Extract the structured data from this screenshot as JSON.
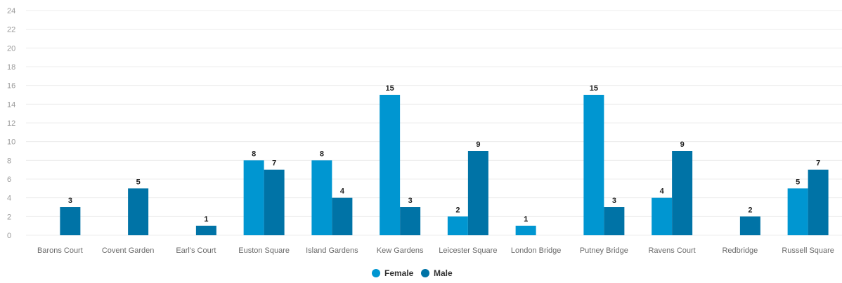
{
  "chart_data": {
    "type": "bar",
    "categories": [
      "Barons Court",
      "Covent Garden",
      "Earl's Court",
      "Euston Square",
      "Island Gardens",
      "Kew Gardens",
      "Leicester Square",
      "London Bridge",
      "Putney Bridge",
      "Ravens Court",
      "Redbridge",
      "Russell Square"
    ],
    "series": [
      {
        "name": "Female",
        "color": "#0096d1",
        "values": [
          null,
          null,
          null,
          8,
          8,
          15,
          2,
          1,
          15,
          4,
          null,
          5
        ]
      },
      {
        "name": "Male",
        "color": "#0073a6",
        "values": [
          3,
          5,
          1,
          7,
          4,
          3,
          9,
          null,
          3,
          9,
          2,
          7
        ]
      }
    ],
    "yticks": [
      "0",
      "2",
      "4",
      "6",
      "8",
      "10",
      "12",
      "14",
      "16",
      "18",
      "20",
      "22",
      "24"
    ],
    "ylim": [
      0,
      24
    ],
    "grid": true,
    "legend": "bottom-center"
  }
}
